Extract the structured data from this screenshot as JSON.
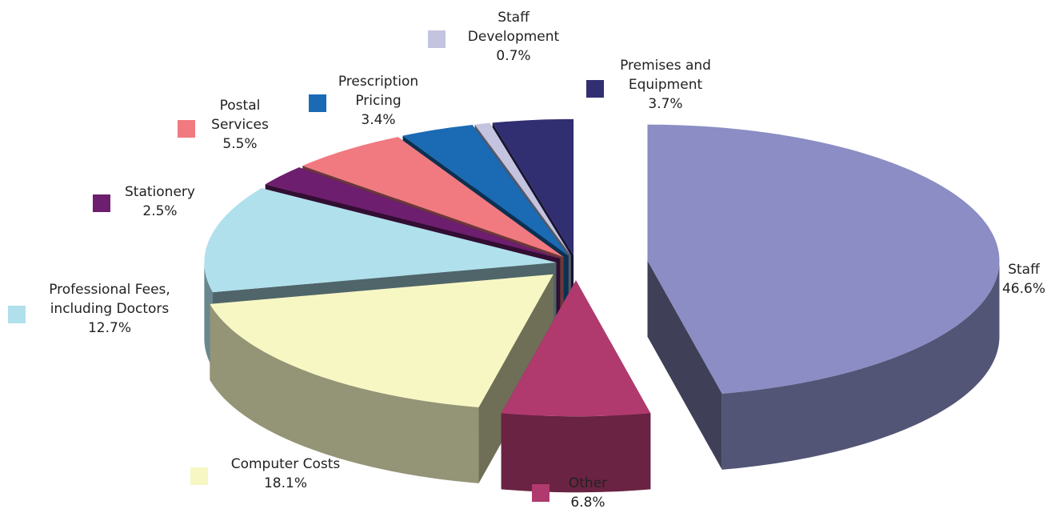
{
  "chart_data": {
    "type": "pie3d",
    "categories": [
      "Staff",
      "Other",
      "Computer Costs",
      "Professional Fees, including Doctors",
      "Stationery",
      "Postal Services",
      "Prescription Pricing",
      "Staff Development",
      "Premises and Equipment"
    ],
    "values": [
      46.6,
      6.8,
      18.1,
      12.7,
      2.5,
      5.5,
      3.4,
      0.7,
      3.7
    ],
    "value_labels": [
      "46.6%",
      "6.8%",
      "18.1%",
      "12.7%",
      "2.5%",
      "5.5%",
      "3.4%",
      "0.7%",
      "3.7%"
    ],
    "colors": [
      "#8b8dc4",
      "#b03a6e",
      "#f7f7c4",
      "#b0e0ec",
      "#6e1e6e",
      "#f07a80",
      "#1a6ab4",
      "#c4c4e0",
      "#322e72"
    ]
  }
}
